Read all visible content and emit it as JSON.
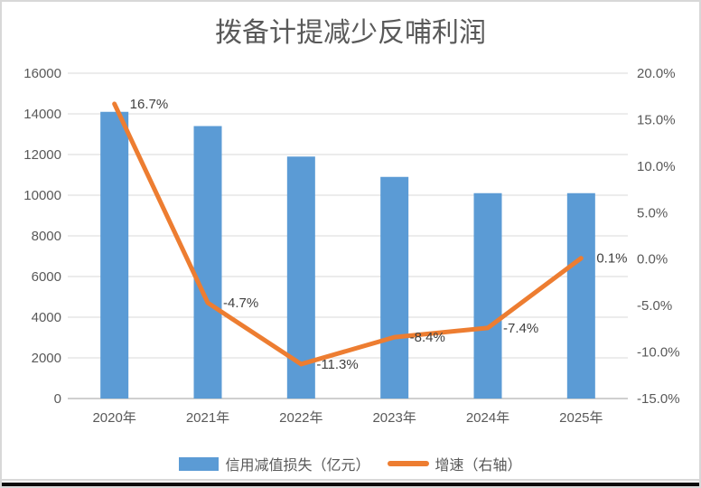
{
  "title": "拨备计提减少反哺利润",
  "colors": {
    "bar": "#5B9BD5",
    "line": "#ED7D31",
    "gridline": "#D9D9D9",
    "axis_line": "#BFBFBF",
    "tick_text": "#595959",
    "data_label_text": "#404040",
    "border": "#D8D8D8",
    "bottom_edge": "#0b0b0b"
  },
  "chart_data": {
    "type": "bar",
    "combo": "bar+line, dual axis",
    "title": "拨备计提减少反哺利润",
    "categories": [
      "2020年",
      "2021年",
      "2022年",
      "2023年",
      "2024年",
      "2025年"
    ],
    "series": [
      {
        "name": "信用减值损失（亿元）",
        "type": "bar",
        "axis": "left",
        "color": "#5B9BD5",
        "values": [
          14100,
          13400,
          11900,
          10900,
          10100,
          10100
        ]
      },
      {
        "name": "增速（右轴）",
        "type": "line",
        "axis": "right",
        "color": "#ED7D31",
        "values": [
          16.7,
          -4.7,
          -11.3,
          -8.4,
          -7.4,
          0.1
        ],
        "point_labels": [
          "16.7%",
          "-4.7%",
          "-11.3%",
          "-8.4%",
          "-7.4%",
          "0.1%"
        ]
      }
    ],
    "left_axis": {
      "min": 0,
      "max": 16000,
      "step": 2000,
      "tick_labels": [
        "16000",
        "14000",
        "12000",
        "10000",
        "8000",
        "6000",
        "4000",
        "2000",
        "0"
      ]
    },
    "right_axis": {
      "min": -15,
      "max": 20,
      "step": 5,
      "tick_labels": [
        "20.0%",
        "15.0%",
        "10.0%",
        "5.0%",
        "0.0%",
        "-5.0%",
        "-10.0%",
        "-15.0%"
      ]
    },
    "grid": true,
    "legend_position": "bottom"
  }
}
